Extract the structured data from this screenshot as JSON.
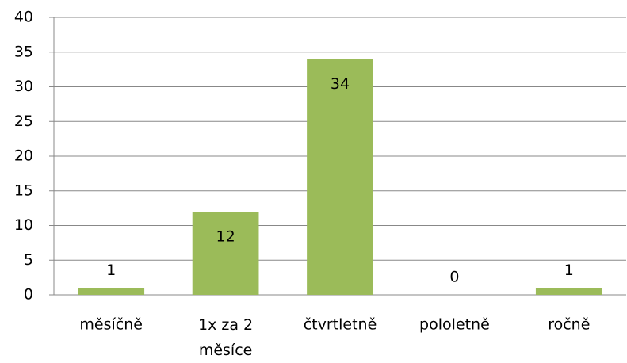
{
  "chart_data": {
    "type": "bar",
    "categories": [
      "měsíčně",
      "1x za 2 měsíce",
      "čtvrtletně",
      "pololetně",
      "ročně"
    ],
    "values": [
      1,
      12,
      34,
      0,
      1
    ],
    "color": "#9bbb59",
    "ylim": [
      0,
      40
    ],
    "yticks": [
      0,
      5,
      10,
      15,
      20,
      25,
      30,
      35,
      40
    ],
    "grid": true
  }
}
